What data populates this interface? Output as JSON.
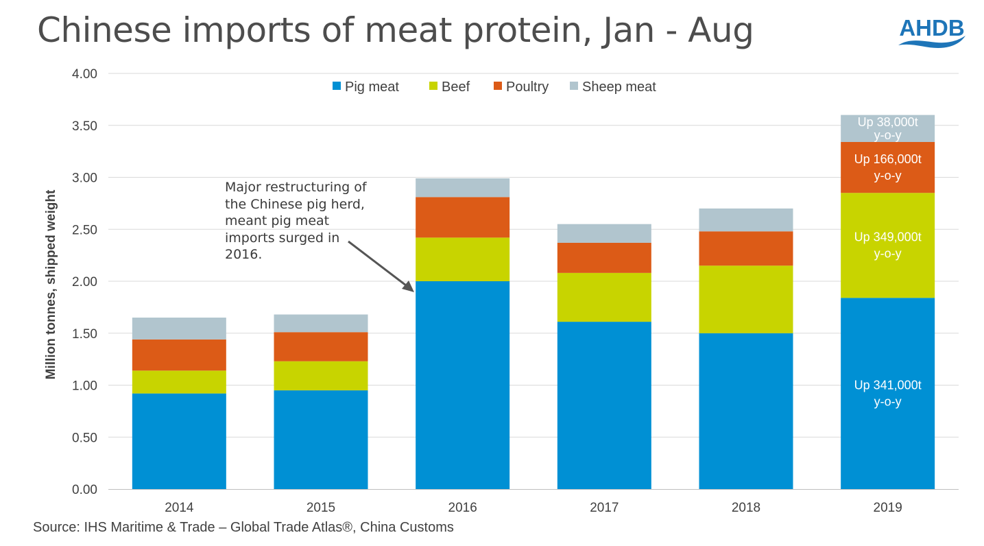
{
  "title": "Chinese imports of meat protein, Jan - Aug",
  "logo": {
    "text": "AHDB",
    "color": "#1e75b8"
  },
  "source": "Source: IHS Maritime & Trade – Global Trade Atlas®, China Customs",
  "annotation": "Major restructuring of\nthe Chinese pig herd,\nmeant pig meat\nimports surged in\n2016.",
  "chart_data": {
    "type": "bar",
    "stacked": true,
    "title": "Chinese imports of meat protein, Jan - Aug",
    "xlabel": "",
    "ylabel": "Million tonnes, shipped weight",
    "ylim": [
      0,
      4
    ],
    "ytick_labels": [
      "0.00",
      "0.50",
      "1.00",
      "1.50",
      "2.00",
      "2.50",
      "3.00",
      "3.50",
      "4.00"
    ],
    "gridlines": true,
    "legend_position": "top",
    "categories": [
      "2014",
      "2015",
      "2016",
      "2017",
      "2018",
      "2019"
    ],
    "series": [
      {
        "name": "Pig meat",
        "color": "#0090d4",
        "values": [
          0.92,
          0.95,
          2.0,
          1.61,
          1.5,
          1.84
        ]
      },
      {
        "name": "Beef",
        "color": "#c8d400",
        "values": [
          0.22,
          0.28,
          0.42,
          0.47,
          0.65,
          1.01
        ]
      },
      {
        "name": "Poultry",
        "color": "#dc5b17",
        "values": [
          0.3,
          0.28,
          0.39,
          0.29,
          0.33,
          0.49
        ]
      },
      {
        "name": "Sheep meat",
        "color": "#b1c5ce",
        "values": [
          0.21,
          0.17,
          0.18,
          0.18,
          0.22,
          0.26
        ]
      }
    ],
    "data_labels": [
      {
        "category": "2019",
        "series": "Pig meat",
        "lines": [
          "Up 341,000t",
          "y-o-y"
        ]
      },
      {
        "category": "2019",
        "series": "Beef",
        "lines": [
          "Up 349,000t",
          "y-o-y"
        ]
      },
      {
        "category": "2019",
        "series": "Poultry",
        "lines": [
          "Up 166,000t",
          "y-o-y"
        ]
      },
      {
        "category": "2019",
        "series": "Sheep meat",
        "lines": [
          "Up  38,000t",
          "y-o-y"
        ]
      }
    ]
  }
}
